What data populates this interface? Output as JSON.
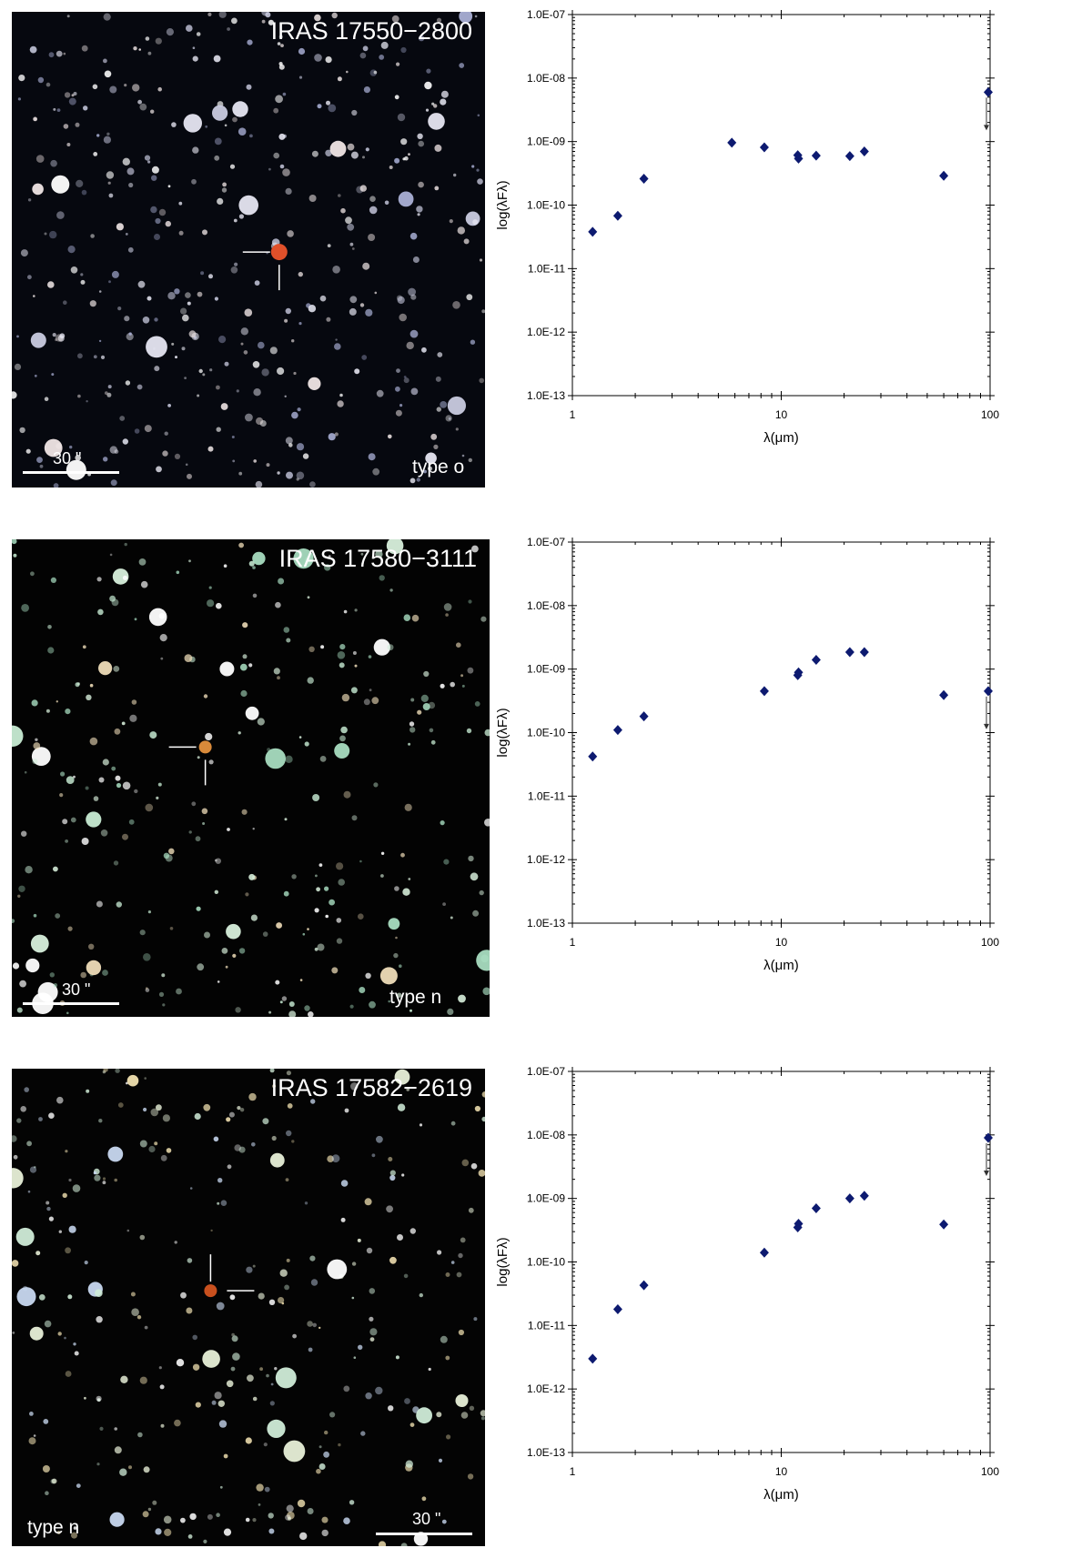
{
  "colors": {
    "marker": "#0d1a70",
    "axis": "#000000",
    "image_background": "#050505",
    "target_marker_colors": [
      "#e0502a",
      "#d98a3a",
      "#c8501e"
    ]
  },
  "panels": [
    {
      "image": {
        "title": "IRAS 17550−2800",
        "type_label": "type o",
        "scale_label": "30 \"",
        "background": "#06080f"
      }
    },
    {
      "image": {
        "title": "IRAS 17580−3111",
        "type_label": "type n",
        "scale_label": "30 \"",
        "background": "#030303"
      }
    },
    {
      "image": {
        "title": "IRAS 17582−2619",
        "type_label": "type n",
        "scale_label": "30 \"",
        "background": "#040404"
      }
    }
  ],
  "chart_data": [
    {
      "type": "scatter",
      "title": "",
      "xlabel": "λ(μm)",
      "ylabel": "log(λFλ)",
      "x_scale": "log",
      "y_scale": "log",
      "xlim": [
        1,
        100
      ],
      "ylim": [
        1e-13,
        1e-07
      ],
      "x_tick_labels": [
        "1",
        "10",
        "100"
      ],
      "y_tick_labels": [
        "1.0E-13",
        "1.0E-12",
        "1.0E-11",
        "1.0E-10",
        "1.0E-09",
        "1.0E-08",
        "1.0E-07"
      ],
      "grid": false,
      "points": [
        {
          "x": 1.25,
          "y": 3.8e-11
        },
        {
          "x": 1.65,
          "y": 6.8e-11
        },
        {
          "x": 2.2,
          "y": 2.6e-10
        },
        {
          "x": 5.8,
          "y": 9.6e-10
        },
        {
          "x": 8.3,
          "y": 8.1e-10
        },
        {
          "x": 12.0,
          "y": 6.1e-10
        },
        {
          "x": 12.1,
          "y": 5.4e-10
        },
        {
          "x": 14.7,
          "y": 6e-10
        },
        {
          "x": 21.3,
          "y": 5.9e-10
        },
        {
          "x": 25.0,
          "y": 7e-10
        },
        {
          "x": 60.0,
          "y": 2.9e-10
        },
        {
          "x": 98.0,
          "y": 6e-09,
          "upper_limit": true
        }
      ]
    },
    {
      "type": "scatter",
      "title": "",
      "xlabel": "λ(μm)",
      "ylabel": "log(λFλ)",
      "x_scale": "log",
      "y_scale": "log",
      "xlim": [
        1,
        100
      ],
      "ylim": [
        1e-13,
        1e-07
      ],
      "x_tick_labels": [
        "1",
        "10",
        "100"
      ],
      "y_tick_labels": [
        "1.0E-13",
        "1.0E-12",
        "1.0E-11",
        "1.0E-10",
        "1.0E-09",
        "1.0E-08",
        "1.0E-07"
      ],
      "grid": false,
      "points": [
        {
          "x": 1.25,
          "y": 4.2e-11
        },
        {
          "x": 1.65,
          "y": 1.1e-10
        },
        {
          "x": 2.2,
          "y": 1.8e-10
        },
        {
          "x": 8.3,
          "y": 4.5e-10
        },
        {
          "x": 12.0,
          "y": 8e-10
        },
        {
          "x": 12.1,
          "y": 8.9e-10
        },
        {
          "x": 14.7,
          "y": 1.4e-09
        },
        {
          "x": 21.3,
          "y": 1.85e-09
        },
        {
          "x": 25.0,
          "y": 1.85e-09
        },
        {
          "x": 60.0,
          "y": 3.9e-10
        },
        {
          "x": 98.0,
          "y": 4.5e-10,
          "upper_limit": true
        }
      ]
    },
    {
      "type": "scatter",
      "title": "",
      "xlabel": "λ(μm)",
      "ylabel": "log(λFλ)",
      "x_scale": "log",
      "y_scale": "log",
      "xlim": [
        1,
        100
      ],
      "ylim": [
        1e-13,
        1e-07
      ],
      "x_tick_labels": [
        "1",
        "10",
        "100"
      ],
      "y_tick_labels": [
        "1.0E-13",
        "1.0E-12",
        "1.0E-11",
        "1.0E-10",
        "1.0E-09",
        "1.0E-08",
        "1.0E-07"
      ],
      "grid": false,
      "points": [
        {
          "x": 1.25,
          "y": 3e-12
        },
        {
          "x": 1.65,
          "y": 1.8e-11
        },
        {
          "x": 2.2,
          "y": 4.3e-11
        },
        {
          "x": 8.3,
          "y": 1.4e-10
        },
        {
          "x": 12.0,
          "y": 3.5e-10
        },
        {
          "x": 12.1,
          "y": 4e-10
        },
        {
          "x": 14.7,
          "y": 7e-10
        },
        {
          "x": 21.3,
          "y": 1e-09
        },
        {
          "x": 25.0,
          "y": 1.1e-09
        },
        {
          "x": 60.0,
          "y": 3.9e-10
        },
        {
          "x": 98.0,
          "y": 9e-09,
          "upper_limit": true
        }
      ]
    }
  ]
}
